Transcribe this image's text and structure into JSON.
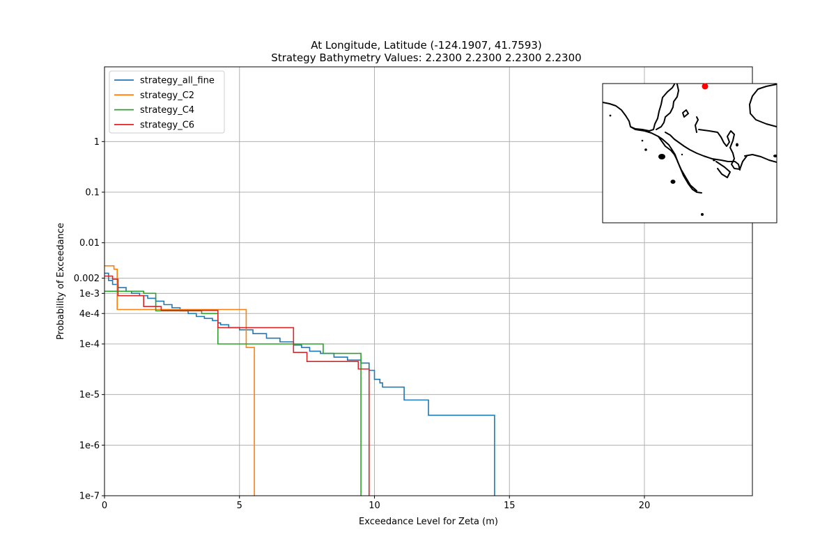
{
  "chart_data": {
    "type": "line",
    "step": true,
    "title": "At Longitude, Latitude (-124.1907,  41.7593)",
    "subtitle": "Strategy Bathymetry Values:    2.2300    2.2300    2.2300    2.2300",
    "xlabel": "Exceedance Level for Zeta (m)",
    "ylabel": "Probability of Exceedance",
    "xlim": [
      0,
      24
    ],
    "ylim": [
      1e-07,
      30
    ],
    "yscale": "log",
    "grid": true,
    "legend_position": "top-left",
    "x_ticks": [
      {
        "value": 0,
        "label": "0"
      },
      {
        "value": 5,
        "label": "5"
      },
      {
        "value": 10,
        "label": "10"
      },
      {
        "value": 15,
        "label": "15"
      },
      {
        "value": 20,
        "label": "20"
      }
    ],
    "y_ticks": [
      {
        "value": 1,
        "label": "1"
      },
      {
        "value": 0.1,
        "label": "0.1"
      },
      {
        "value": 0.01,
        "label": "0.01"
      },
      {
        "value": 0.002,
        "label": "0.002"
      },
      {
        "value": 0.001,
        "label": "1e-3"
      },
      {
        "value": 0.0004,
        "label": "4e-4"
      },
      {
        "value": 0.0001,
        "label": "1e-4"
      },
      {
        "value": 1e-05,
        "label": "1e-5"
      },
      {
        "value": 1e-06,
        "label": "1e-6"
      },
      {
        "value": 1e-07,
        "label": "1e-7"
      }
    ],
    "series": [
      {
        "name": "strategy_all_fine",
        "color": "#1f77b4",
        "points": [
          [
            0,
            0.0025
          ],
          [
            0.15,
            0.0018
          ],
          [
            0.3,
            0.0015
          ],
          [
            0.5,
            0.0013
          ],
          [
            0.8,
            0.0011
          ],
          [
            1.0,
            0.001
          ],
          [
            1.3,
            0.0009
          ],
          [
            1.6,
            0.0008
          ],
          [
            1.9,
            0.0007
          ],
          [
            2.2,
            0.0006
          ],
          [
            2.5,
            0.00052
          ],
          [
            2.8,
            0.00045
          ],
          [
            3.1,
            0.0004
          ],
          [
            3.4,
            0.00035
          ],
          [
            3.7,
            0.00032
          ],
          [
            4.0,
            0.00029
          ],
          [
            4.2,
            0.00026
          ],
          [
            4.3,
            0.00024
          ],
          [
            4.6,
            0.00021
          ],
          [
            5.0,
            0.00019
          ],
          [
            5.5,
            0.00016
          ],
          [
            6.0,
            0.00013
          ],
          [
            6.5,
            0.00011
          ],
          [
            7.0,
            9.5e-05
          ],
          [
            7.3,
            8.5e-05
          ],
          [
            7.6,
            7.2e-05
          ],
          [
            8.0,
            6.5e-05
          ],
          [
            8.5,
            5.5e-05
          ],
          [
            9.0,
            4.8e-05
          ],
          [
            9.5,
            4.2e-05
          ],
          [
            9.8,
            3e-05
          ],
          [
            10.0,
            2e-05
          ],
          [
            10.2,
            1.7e-05
          ],
          [
            10.3,
            1.4e-05
          ],
          [
            11.1,
            7.8e-06
          ],
          [
            12.0,
            3.9e-06
          ],
          [
            14.45,
            1e-07
          ]
        ]
      },
      {
        "name": "strategy_C2",
        "color": "#ff7f0e",
        "points": [
          [
            0,
            0.0035
          ],
          [
            0.35,
            0.003
          ],
          [
            0.47,
            0.00048
          ],
          [
            5.25,
            8.5e-05
          ],
          [
            5.55,
            1e-07
          ]
        ]
      },
      {
        "name": "strategy_C4",
        "color": "#2ca02c",
        "points": [
          [
            0,
            0.0011
          ],
          [
            1.45,
            0.001
          ],
          [
            1.9,
            0.00045
          ],
          [
            3.6,
            0.0004
          ],
          [
            4.2,
            0.0001
          ],
          [
            8.1,
            6.5e-05
          ],
          [
            9.5,
            1e-07
          ]
        ]
      },
      {
        "name": "strategy_C6",
        "color": "#d62728",
        "points": [
          [
            0,
            0.0022
          ],
          [
            0.3,
            0.0019
          ],
          [
            0.5,
            0.0009
          ],
          [
            1.45,
            0.00055
          ],
          [
            2.1,
            0.00046
          ],
          [
            4.2,
            0.00021
          ],
          [
            7.0,
            6.8e-05
          ],
          [
            7.5,
            4.5e-05
          ],
          [
            9.4,
            3.2e-05
          ],
          [
            9.8,
            1e-07
          ]
        ]
      }
    ]
  },
  "inset_map": {
    "marker_color": "#ff0000"
  }
}
